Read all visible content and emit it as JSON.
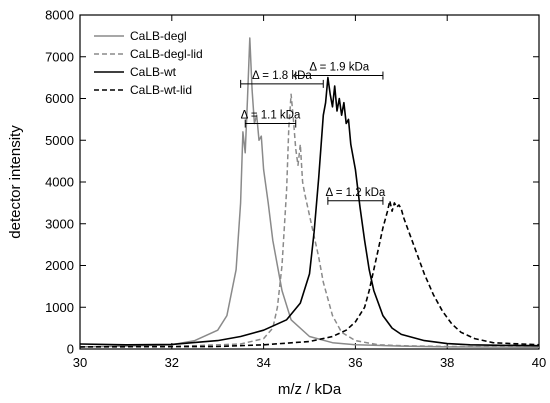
{
  "chart_data": {
    "type": "line",
    "xlabel": "m/z / kDa",
    "ylabel": "detector intensity",
    "xlim": [
      30,
      40
    ],
    "ylim": [
      0,
      8000
    ],
    "xticks": [
      30,
      32,
      34,
      36,
      38,
      40
    ],
    "yticks": [
      0,
      1000,
      2000,
      3000,
      4000,
      5000,
      6000,
      7000,
      8000
    ],
    "legend_position": "top-left",
    "series": [
      {
        "name": "CaLB-degl",
        "color": "#8a8a8a",
        "dash": "solid",
        "x": [
          30.0,
          31.0,
          32.0,
          32.5,
          33.0,
          33.2,
          33.4,
          33.5,
          33.55,
          33.6,
          33.65,
          33.7,
          33.75,
          33.8,
          33.85,
          33.9,
          33.95,
          34.0,
          34.1,
          34.2,
          34.4,
          34.6,
          35.0,
          35.5,
          36.0,
          37.0,
          38.0,
          40.0
        ],
        "y": [
          50,
          70,
          100,
          200,
          450,
          800,
          1900,
          3500,
          5200,
          4700,
          6000,
          7450,
          6200,
          5400,
          5600,
          5000,
          5100,
          4300,
          3500,
          2600,
          1400,
          700,
          300,
          150,
          100,
          70,
          50,
          40
        ]
      },
      {
        "name": "CaLB-degl-lid",
        "color": "#8a8a8a",
        "dash": "dashed",
        "x": [
          30.0,
          32.0,
          33.5,
          34.0,
          34.2,
          34.3,
          34.4,
          34.5,
          34.55,
          34.6,
          34.65,
          34.7,
          34.75,
          34.8,
          34.85,
          34.9,
          35.0,
          35.1,
          35.2,
          35.3,
          35.5,
          35.7,
          36.0,
          36.5,
          37.0,
          38.0,
          40.0
        ],
        "y": [
          50,
          60,
          120,
          250,
          500,
          1000,
          2000,
          3800,
          5300,
          6100,
          5500,
          4800,
          4400,
          4900,
          4000,
          3700,
          3200,
          2700,
          2200,
          1600,
          800,
          400,
          200,
          100,
          80,
          60,
          50
        ]
      },
      {
        "name": "CaLB-wt",
        "color": "#000000",
        "dash": "solid",
        "x": [
          30.0,
          31.0,
          32.0,
          33.0,
          33.5,
          34.0,
          34.5,
          34.8,
          35.0,
          35.1,
          35.2,
          35.3,
          35.35,
          35.4,
          35.45,
          35.5,
          35.55,
          35.6,
          35.65,
          35.7,
          35.75,
          35.8,
          35.85,
          35.9,
          36.0,
          36.1,
          36.2,
          36.3,
          36.4,
          36.6,
          36.8,
          37.0,
          37.5,
          38.0,
          38.5,
          39.0,
          40.0
        ],
        "y": [
          120,
          100,
          110,
          200,
          300,
          450,
          700,
          1100,
          1800,
          2800,
          4100,
          5600,
          5900,
          6500,
          6100,
          5800,
          6300,
          5700,
          6000,
          5600,
          5900,
          5400,
          5500,
          4900,
          4300,
          3400,
          2600,
          1900,
          1400,
          800,
          500,
          350,
          200,
          130,
          100,
          90,
          80
        ]
      },
      {
        "name": "CaLB-wt-lid",
        "color": "#000000",
        "dash": "dashed",
        "x": [
          30.0,
          33.0,
          34.0,
          35.0,
          35.5,
          35.8,
          36.0,
          36.2,
          36.3,
          36.4,
          36.5,
          36.6,
          36.7,
          36.75,
          36.8,
          36.85,
          36.9,
          36.95,
          37.0,
          37.05,
          37.1,
          37.2,
          37.3,
          37.5,
          37.7,
          37.9,
          38.1,
          38.3,
          38.6,
          39.0,
          40.0
        ],
        "y": [
          50,
          60,
          100,
          180,
          300,
          450,
          650,
          1000,
          1400,
          1900,
          2400,
          2900,
          3300,
          3550,
          3300,
          3500,
          3400,
          3450,
          3350,
          3150,
          3000,
          2700,
          2400,
          1800,
          1300,
          900,
          600,
          400,
          250,
          150,
          100
        ]
      }
    ],
    "annotations": [
      {
        "text": "Δ = 1.9 kDa",
        "x1": 34.7,
        "x2": 36.6,
        "y": 6550
      },
      {
        "text": "Δ = 1.8 kDa",
        "x1": 33.5,
        "x2": 35.3,
        "y": 6350
      },
      {
        "text": "Δ = 1.1 kDa",
        "x1": 33.6,
        "x2": 34.7,
        "y": 5400
      },
      {
        "text": "Δ = 1.2 kDa",
        "x1": 35.4,
        "x2": 36.6,
        "y": 3550
      }
    ]
  }
}
